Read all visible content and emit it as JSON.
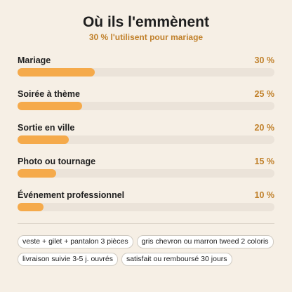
{
  "chart_data": {
    "type": "bar",
    "orientation": "horizontal",
    "title": "Où ils l'emmènent",
    "subtitle": "30 % l'utilisent pour mariage",
    "categories": [
      "Mariage",
      "Soirée à thème",
      "Sortie en ville",
      "Photo ou tournage",
      "Événement professionnel"
    ],
    "values": [
      30,
      25,
      20,
      15,
      10
    ],
    "value_labels": [
      "30 %",
      "25 %",
      "20 %",
      "15 %",
      "10 %"
    ],
    "color": "#f5aa4b",
    "track_color": "#ebe3d9",
    "xlim": [
      0,
      100
    ]
  },
  "tags": [
    "veste + gilet + pantalon 3 pièces",
    "gris chevron ou marron tweed 2 coloris",
    "livraison suivie 3-5 j. ouvrés",
    "satisfait ou remboursé 30 jours"
  ]
}
